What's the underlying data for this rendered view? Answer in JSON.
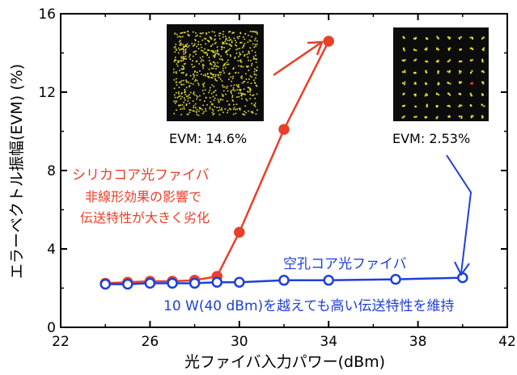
{
  "chart_data": {
    "type": "line",
    "xlabel": "光ファイバ入力パワー(dBm)",
    "ylabel": "エラーベクトル振幅(EVM) (%)",
    "xlim": [
      22,
      42
    ],
    "ylim": [
      0,
      16
    ],
    "x_ticks": [
      "22",
      "26",
      "30",
      "34",
      "38",
      "42"
    ],
    "y_ticks": [
      "0",
      "4",
      "8",
      "12",
      "16"
    ],
    "series": [
      {
        "color": "#e8402a",
        "marker": "filled-circle",
        "points": [
          [
            24,
            2.25
          ],
          [
            25,
            2.3
          ],
          [
            26,
            2.35
          ],
          [
            27,
            2.35
          ],
          [
            28,
            2.4
          ],
          [
            29,
            2.6
          ],
          [
            30,
            4.85
          ],
          [
            32,
            10.1
          ],
          [
            34,
            14.6
          ]
        ]
      },
      {
        "color": "#1f3fd9",
        "marker": "open-circle",
        "points": [
          [
            24,
            2.2
          ],
          [
            25,
            2.2
          ],
          [
            26,
            2.25
          ],
          [
            27,
            2.25
          ],
          [
            28,
            2.25
          ],
          [
            29,
            2.3
          ],
          [
            30,
            2.3
          ],
          [
            32,
            2.4
          ],
          [
            34,
            2.4
          ],
          [
            37,
            2.45
          ],
          [
            40,
            2.53
          ]
        ]
      }
    ],
    "annotations": {
      "red_title": "シリカコア光ファイバ",
      "red_line1": "非線形効果の影響で",
      "red_line2": "伝送特性が大きく劣化",
      "blue_title": "空孔コア光ファイバ",
      "blue_note": "10 W(40 dBm)を越えても高い伝送特性を維持",
      "evm_left": "EVM: 14.6%",
      "evm_right": "EVM: 2.53%"
    },
    "grid": false
  }
}
